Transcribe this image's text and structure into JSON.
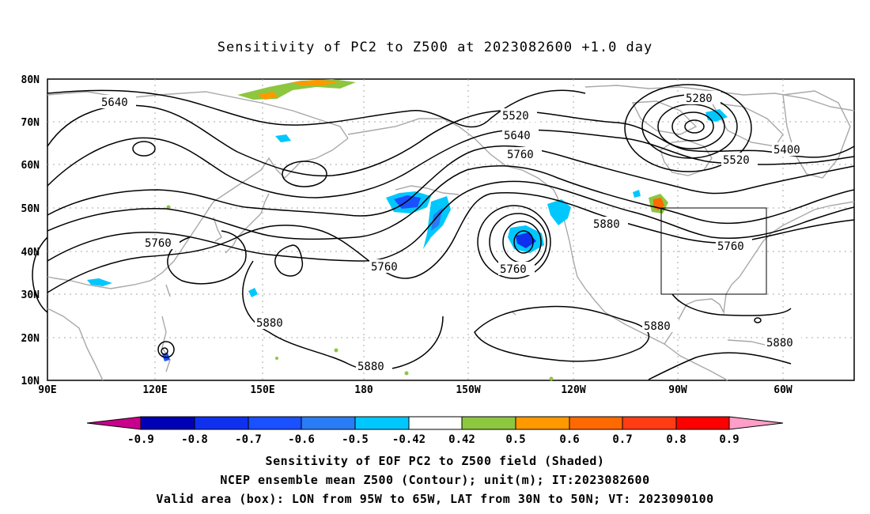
{
  "title": "Sensitivity of PC2 to Z500 at 2023082600 +1.0 day",
  "lat_labels": [
    "80N",
    "70N",
    "60N",
    "50N",
    "40N",
    "30N",
    "20N",
    "10N"
  ],
  "lon_labels": [
    "90E",
    "120E",
    "150E",
    "180",
    "150W",
    "120W",
    "90W",
    "60W"
  ],
  "contour_labels": [
    "5640",
    "5520",
    "5640",
    "5760",
    "5280",
    "5400",
    "5520",
    "5760",
    "5760",
    "5760",
    "5880",
    "5760",
    "5880",
    "5880",
    "5880",
    "5880"
  ],
  "valid_box": {
    "lon_min": -95,
    "lon_max": -65,
    "lat_min": 30,
    "lat_max": 50
  },
  "colorbar": {
    "labels": [
      "-0.9",
      "-0.8",
      "-0.7",
      "-0.6",
      "-0.5",
      "-0.42",
      "0.42",
      "0.5",
      "0.6",
      "0.7",
      "0.8",
      "0.9"
    ],
    "colors": [
      "#0000b4",
      "#1030f0",
      "#1a50ff",
      "#2a7cf4",
      "#00c8ff",
      "#ffffff",
      "#8dc63f",
      "#ff9900",
      "#ff6a00",
      "#ff3c14",
      "#ff0000"
    ],
    "below_color": "#c8008c",
    "above_color": "#ff9ec8"
  },
  "caption": {
    "line1": "Sensitivity of EOF PC2 to Z500 field (Shaded)",
    "line2": "NCEP ensemble mean Z500 (Contour); unit(m); IT:2023082600",
    "line3": "Valid area (box): LON from 95W to 65W, LAT from 30N to 50N; VT: 2023090100"
  }
}
